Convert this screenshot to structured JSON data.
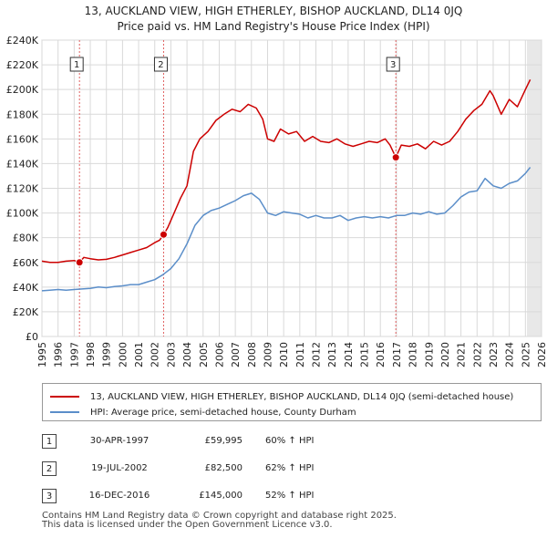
{
  "chart_data": {
    "type": "line",
    "title": "13, AUCKLAND VIEW, HIGH ETHERLEY, BISHOP AUCKLAND, DL14 0JQ",
    "subtitle": "Price paid vs. HM Land Registry's House Price Index (HPI)",
    "xlabel": "",
    "ylabel": "",
    "xlim": [
      1995,
      2026
    ],
    "ylim": [
      0,
      240000
    ],
    "x_ticks": [
      1995,
      1996,
      1997,
      1998,
      1999,
      2000,
      2001,
      2002,
      2003,
      2004,
      2005,
      2006,
      2007,
      2008,
      2009,
      2010,
      2011,
      2012,
      2013,
      2014,
      2015,
      2016,
      2017,
      2018,
      2019,
      2020,
      2021,
      2022,
      2023,
      2024,
      2025,
      2026
    ],
    "y_ticks": [
      0,
      20000,
      40000,
      60000,
      80000,
      100000,
      120000,
      140000,
      160000,
      180000,
      200000,
      220000,
      240000
    ],
    "y_tick_labels": [
      "£0",
      "£20K",
      "£40K",
      "£60K",
      "£80K",
      "£100K",
      "£120K",
      "£140K",
      "£160K",
      "£180K",
      "£200K",
      "£220K",
      "£240K"
    ],
    "grid": true,
    "series": [
      {
        "name": "13, AUCKLAND VIEW, HIGH ETHERLEY, BISHOP AUCKLAND, DL14 0JQ (semi-detached house)",
        "color": "#cc0000",
        "x": [
          1995.0,
          1995.5,
          1996.0,
          1996.5,
          1997.0,
          1997.33,
          1997.6,
          1998.0,
          1998.5,
          1999.0,
          1999.5,
          2000.0,
          2000.5,
          2001.0,
          2001.5,
          2002.0,
          2002.3,
          2002.55,
          2002.8,
          2003.2,
          2003.6,
          2004.0,
          2004.4,
          2004.8,
          2005.3,
          2005.8,
          2006.3,
          2006.8,
          2007.3,
          2007.8,
          2008.3,
          2008.7,
          2009.0,
          2009.4,
          2009.8,
          2010.3,
          2010.8,
          2011.3,
          2011.8,
          2012.3,
          2012.8,
          2013.3,
          2013.8,
          2014.3,
          2014.8,
          2015.3,
          2015.8,
          2016.3,
          2016.6,
          2016.96,
          2017.3,
          2017.8,
          2018.3,
          2018.8,
          2019.3,
          2019.8,
          2020.3,
          2020.8,
          2021.3,
          2021.8,
          2022.3,
          2022.8,
          2023.0,
          2023.5,
          2024.0,
          2024.5,
          2025.0,
          2025.3
        ],
        "values": [
          61000,
          60000,
          60000,
          61000,
          61500,
          59995,
          64000,
          63000,
          62000,
          62500,
          64000,
          66000,
          68000,
          70000,
          72000,
          76000,
          78000,
          82500,
          88000,
          100000,
          112000,
          122000,
          150000,
          160000,
          166000,
          175000,
          180000,
          184000,
          182000,
          188000,
          185000,
          176000,
          160000,
          158000,
          168000,
          164000,
          166000,
          158000,
          162000,
          158000,
          157000,
          160000,
          156000,
          154000,
          156000,
          158000,
          157000,
          160000,
          155000,
          145000,
          155000,
          154000,
          156000,
          152000,
          158000,
          155000,
          158000,
          166000,
          176000,
          183000,
          188000,
          199000,
          195000,
          180000,
          192000,
          186000,
          200000,
          208000
        ]
      },
      {
        "name": "HPI: Average price, semi-detached house, County Durham",
        "color": "#5b8ec9",
        "x": [
          1995.0,
          1995.5,
          1996.0,
          1996.5,
          1997.0,
          1997.5,
          1998.0,
          1998.5,
          1999.0,
          1999.5,
          2000.0,
          2000.5,
          2001.0,
          2001.5,
          2002.0,
          2002.5,
          2003.0,
          2003.5,
          2004.0,
          2004.5,
          2005.0,
          2005.5,
          2006.0,
          2006.5,
          2007.0,
          2007.5,
          2008.0,
          2008.5,
          2009.0,
          2009.5,
          2010.0,
          2010.5,
          2011.0,
          2011.5,
          2012.0,
          2012.5,
          2013.0,
          2013.5,
          2014.0,
          2014.5,
          2015.0,
          2015.5,
          2016.0,
          2016.5,
          2017.0,
          2017.5,
          2018.0,
          2018.5,
          2019.0,
          2019.5,
          2020.0,
          2020.5,
          2021.0,
          2021.5,
          2022.0,
          2022.5,
          2023.0,
          2023.5,
          2024.0,
          2024.5,
          2025.0,
          2025.3
        ],
        "values": [
          37000,
          37500,
          38000,
          37500,
          38000,
          38500,
          39000,
          40000,
          39500,
          40500,
          41000,
          42000,
          42000,
          44000,
          46000,
          50000,
          55000,
          63000,
          75000,
          90000,
          98000,
          102000,
          104000,
          107000,
          110000,
          114000,
          116000,
          111000,
          100000,
          98000,
          101000,
          100000,
          99000,
          96000,
          98000,
          96000,
          96000,
          98000,
          94000,
          96000,
          97000,
          96000,
          97000,
          96000,
          98000,
          98000,
          100000,
          99000,
          101000,
          99000,
          100000,
          106000,
          113000,
          117000,
          118000,
          128000,
          122000,
          120000,
          124000,
          126000,
          132000,
          137000
        ]
      }
    ],
    "sale_markers": [
      {
        "label": "1",
        "x": 1997.33,
        "value": 59995
      },
      {
        "label": "2",
        "x": 2002.55,
        "value": 82500
      },
      {
        "label": "3",
        "x": 2016.96,
        "value": 145000
      }
    ]
  },
  "legend": {
    "property_label": "13, AUCKLAND VIEW, HIGH ETHERLEY, BISHOP AUCKLAND, DL14 0JQ (semi-detached house)",
    "hpi_label": "HPI: Average price, semi-detached house, County Durham"
  },
  "sales": [
    {
      "num": "1",
      "date": "30-APR-1997",
      "price": "£59,995",
      "hpi": "60% ↑ HPI"
    },
    {
      "num": "2",
      "date": "19-JUL-2002",
      "price": "£82,500",
      "hpi": "62% ↑ HPI"
    },
    {
      "num": "3",
      "date": "16-DEC-2016",
      "price": "£145,000",
      "hpi": "52% ↑ HPI"
    }
  ],
  "footer": {
    "line1": "Contains HM Land Registry data © Crown copyright and database right 2025.",
    "line2": "This data is licensed under the Open Government Licence v3.0."
  }
}
